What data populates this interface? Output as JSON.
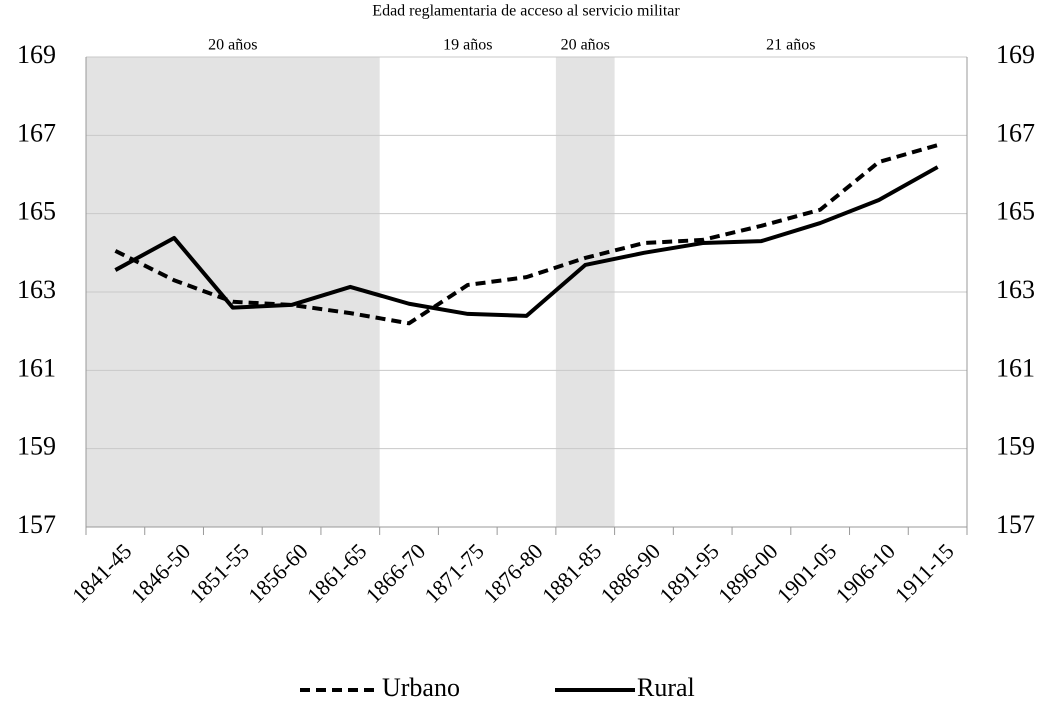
{
  "chart_data": {
    "type": "line",
    "title": "Edad reglamentaria de acceso al servicio militar",
    "categories": [
      "1841-45",
      "1846-50",
      "1851-55",
      "1856-60",
      "1861-65",
      "1866-70",
      "1871-75",
      "1876-80",
      "1881-85",
      "1886-90",
      "1891-95",
      "1896-00",
      "1901-05",
      "1906-10",
      "1911-15"
    ],
    "series": [
      {
        "name": "Urbano",
        "color": "#000000",
        "line_style": "dashed",
        "values": [
          164.05,
          163.3,
          162.75,
          162.67,
          162.46,
          162.2,
          163.18,
          163.38,
          163.87,
          164.25,
          164.33,
          164.69,
          165.1,
          166.32,
          166.75
        ]
      },
      {
        "name": "Rural",
        "color": "#000000",
        "line_style": "solid",
        "values": [
          163.56,
          164.38,
          162.6,
          162.67,
          163.13,
          162.7,
          162.44,
          162.39,
          163.69,
          164.0,
          164.25,
          164.3,
          164.76,
          165.35,
          166.19
        ]
      }
    ],
    "periods": [
      {
        "label": "20 años",
        "start": "1841-45",
        "end": "1861-65",
        "shaded": true
      },
      {
        "label": "19 años",
        "start": "1866-70",
        "end": "1876-80",
        "shaded": false
      },
      {
        "label": "20 años",
        "start": "1881-85",
        "end": "1881-85",
        "shaded": true
      },
      {
        "label": "21 años",
        "start": "1886-90",
        "end": "1911-15",
        "shaded": false
      }
    ],
    "ylim": [
      157,
      169
    ],
    "yticks": [
      157,
      159,
      161,
      163,
      165,
      167,
      169
    ],
    "grid": true,
    "legend": "bottom"
  }
}
